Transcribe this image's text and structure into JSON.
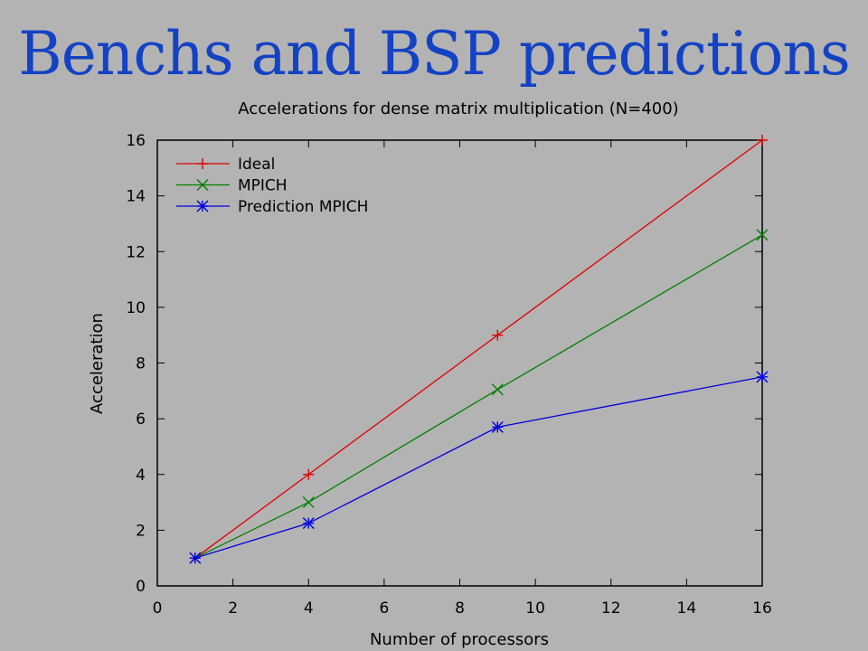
{
  "slide": {
    "title": "Benchs and BSP predictions"
  },
  "colors": {
    "title": "#1442c4",
    "background": "#b3b3b3",
    "ideal": "#e00000",
    "mpich": "#008000",
    "prediction": "#0000e0"
  },
  "chart_data": {
    "type": "line",
    "title": "Accelerations for dense matrix multiplication (N=400)",
    "xlabel": "Number of processors",
    "ylabel": "Acceleration",
    "xlim": [
      0,
      16
    ],
    "ylim": [
      0,
      16
    ],
    "xticks": [
      0,
      2,
      4,
      6,
      8,
      10,
      12,
      14,
      16
    ],
    "yticks": [
      0,
      2,
      4,
      6,
      8,
      10,
      12,
      14,
      16
    ],
    "grid": false,
    "legend_position": "top-left",
    "series": [
      {
        "name": "Ideal",
        "marker": "plus",
        "color": "#e00000",
        "x": [
          1,
          4,
          9,
          16
        ],
        "y": [
          1,
          4,
          9,
          16
        ]
      },
      {
        "name": "MPICH",
        "marker": "cross",
        "color": "#008000",
        "x": [
          1,
          4,
          9,
          16
        ],
        "y": [
          1,
          3.0,
          7.05,
          12.6
        ]
      },
      {
        "name": "Prediction MPICH",
        "marker": "star",
        "color": "#0000e0",
        "x": [
          1,
          4,
          9,
          16
        ],
        "y": [
          1,
          2.25,
          5.7,
          7.5
        ]
      }
    ]
  }
}
